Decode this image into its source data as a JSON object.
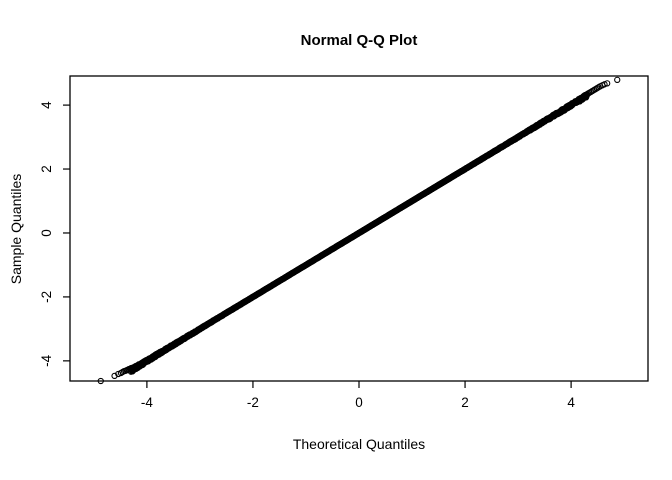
{
  "chart_data": {
    "type": "scatter",
    "subtype": "normal-qq-plot",
    "title": "Normal Q-Q Plot",
    "xlabel": "Theoretical Quantiles",
    "ylabel": "Sample Quantiles",
    "xlim": [
      -5.45,
      5.45
    ],
    "ylim": [
      -4.63,
      4.91
    ],
    "xticks": [
      -4,
      -2,
      0,
      2,
      4
    ],
    "yticks": [
      -4,
      -2,
      0,
      2,
      4
    ],
    "grid": false,
    "legend": "none",
    "marker": "open-circle",
    "color": "#000000",
    "reference_relation": "sample quantiles lie approximately on the identity line y = x from -4.8 to 4.8",
    "dense_segment": {
      "from": -4.3,
      "to": 4.3,
      "n_render": 1900
    },
    "tail_points_low": [
      [
        -4.87,
        -4.63
      ],
      [
        -4.61,
        -4.47
      ],
      [
        -4.54,
        -4.41
      ],
      [
        -4.49,
        -4.38
      ],
      [
        -4.46,
        -4.35
      ],
      [
        -4.43,
        -4.32
      ],
      [
        -4.4,
        -4.31
      ],
      [
        -4.38,
        -4.29
      ],
      [
        -4.36,
        -4.28
      ],
      [
        -4.34,
        -4.26
      ],
      [
        -4.32,
        -4.25
      ],
      [
        -4.3,
        -4.23
      ],
      [
        -4.28,
        -4.22
      ]
    ],
    "tail_points_high": [
      [
        4.28,
        4.32
      ],
      [
        4.3,
        4.34
      ],
      [
        4.32,
        4.36
      ],
      [
        4.34,
        4.38
      ],
      [
        4.37,
        4.41
      ],
      [
        4.4,
        4.44
      ],
      [
        4.43,
        4.47
      ],
      [
        4.46,
        4.5
      ],
      [
        4.49,
        4.53
      ],
      [
        4.52,
        4.56
      ],
      [
        4.55,
        4.59
      ],
      [
        4.59,
        4.62
      ],
      [
        4.63,
        4.65
      ],
      [
        4.68,
        4.68
      ],
      [
        4.87,
        4.79
      ]
    ],
    "style": {
      "point_radius": 2.6,
      "stroke_width": 1.1,
      "tick_len": 7,
      "box_stroke_width": 1.3
    }
  }
}
